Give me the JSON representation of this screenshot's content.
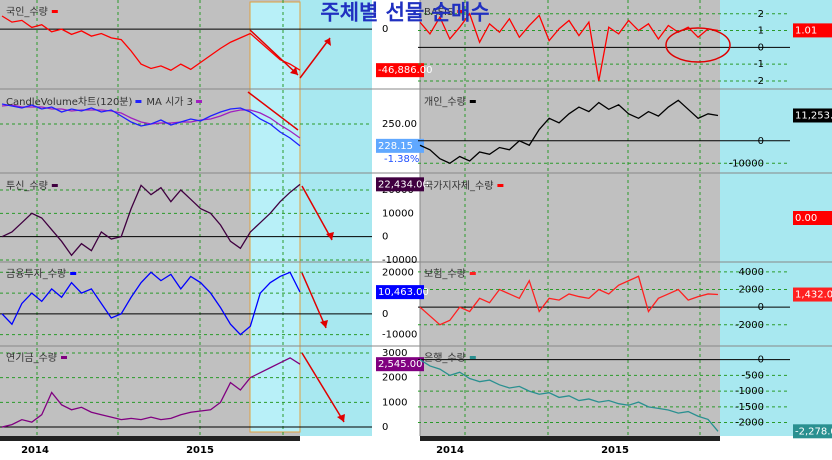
{
  "title": "주체별 선물 순매수",
  "x_axis": {
    "left": [
      "2014",
      "2015"
    ],
    "right": [
      "2014",
      "2015"
    ]
  },
  "chart_data": [
    {
      "type": "line",
      "title": "국인_수량",
      "color": "#ff0000",
      "ylim": [
        -65000,
        31000
      ],
      "yticks": [
        0
      ],
      "value_label": "-46,886.00",
      "values": [
        15000,
        8000,
        10000,
        2000,
        5000,
        -3000,
        0,
        -6000,
        -2000,
        -8000,
        -5000,
        -10000,
        -12000,
        -25000,
        -40000,
        -45000,
        -42000,
        -47000,
        -40000,
        -46000,
        -38000,
        -30000,
        -22000,
        -15000,
        -10000,
        -5000,
        -15000,
        -25000,
        -35000,
        -40000,
        -46886
      ]
    },
    {
      "type": "line",
      "ylim": [
        204,
        282
      ],
      "yticks": [
        {
          "value": 250,
          "label": "250.00"
        }
      ],
      "value_label": "228.15",
      "change_label": "-1.38%",
      "series": [
        {
          "name": "CandleVolume차트(120분)",
          "color": "#2020ff",
          "values": [
            270,
            268,
            266,
            269,
            265,
            267,
            262,
            265,
            263,
            266,
            262,
            264,
            258,
            252,
            248,
            250,
            254,
            249,
            252,
            255,
            253,
            258,
            262,
            265,
            266,
            262,
            255,
            250,
            242,
            236,
            228.15
          ]
        },
        {
          "name": "MA 시가 3",
          "color": "#a020c0",
          "values": [
            268,
            269,
            267,
            267,
            267,
            265,
            265,
            263,
            264,
            264,
            264,
            263,
            261,
            256,
            252,
            250,
            251,
            251,
            252,
            252,
            254,
            255,
            258,
            262,
            264,
            264,
            261,
            256,
            249,
            243,
            236
          ]
        }
      ]
    },
    {
      "type": "line",
      "title": "투신_수량",
      "color": "#400040",
      "ylim": [
        -10000,
        26000
      ],
      "yticks": [
        20000,
        10000,
        0,
        -10000
      ],
      "value_label": "22,434.00",
      "values": [
        0,
        2000,
        6000,
        10000,
        8000,
        3000,
        -2000,
        -8000,
        -3000,
        -6000,
        2000,
        -1000,
        0,
        12000,
        22000,
        18000,
        21000,
        15000,
        20000,
        16000,
        12000,
        10000,
        5000,
        -2000,
        -5000,
        2000,
        6000,
        10000,
        15000,
        19000,
        22434
      ]
    },
    {
      "type": "line",
      "title": "금융투자_수량",
      "color": "#0000ff",
      "ylim": [
        -15000,
        24000
      ],
      "yticks": [
        20000,
        10000,
        0,
        -10000
      ],
      "value_label": "10,463.00",
      "values": [
        0,
        -5000,
        5000,
        10000,
        6000,
        12000,
        8000,
        15000,
        10000,
        12000,
        5000,
        -2000,
        0,
        8000,
        15000,
        20000,
        16000,
        19000,
        12000,
        18000,
        15000,
        10000,
        3000,
        -5000,
        -10000,
        -6000,
        10000,
        15000,
        18000,
        20000,
        10463
      ]
    },
    {
      "type": "line",
      "title": "연기금_수량",
      "color": "#800080",
      "ylim": [
        -200,
        3200
      ],
      "yticks": [
        3000,
        2000,
        1000,
        0
      ],
      "value_label": "2,545.00",
      "values": [
        0,
        100,
        300,
        200,
        500,
        1400,
        900,
        700,
        800,
        600,
        500,
        400,
        300,
        350,
        300,
        400,
        300,
        350,
        500,
        600,
        650,
        700,
        1000,
        1800,
        1500,
        2000,
        2200,
        2400,
        2600,
        2800,
        2545
      ]
    },
    {
      "type": "line",
      "title": "BASIS",
      "color": "#ff0000",
      "ylim": [
        -2.3,
        2.7
      ],
      "yticks": [
        2,
        1,
        0,
        -1,
        -2
      ],
      "value_label": "1.01",
      "values": [
        1.5,
        0.8,
        1.8,
        0.5,
        1.2,
        2.0,
        0.3,
        1.4,
        0.9,
        1.7,
        0.6,
        1.3,
        1.9,
        0.4,
        1.1,
        1.6,
        0.7,
        1.5,
        -2.0,
        1.2,
        0.8,
        1.6,
        1.0,
        1.4,
        0.5,
        1.3,
        0.9,
        1.2,
        0.6,
        1.1,
        1.01
      ]
    },
    {
      "type": "line",
      "title": "개인_수량",
      "color": "#000000",
      "ylim": [
        -13000,
        21700
      ],
      "yticks": [
        0,
        -10000
      ],
      "value_label": "11,253.00",
      "values": [
        -2000,
        -4000,
        -8000,
        -10000,
        -7000,
        -9000,
        -5000,
        -6000,
        -3000,
        -4000,
        0,
        -2000,
        5000,
        10000,
        8000,
        12000,
        15000,
        13000,
        17000,
        14000,
        16000,
        12000,
        10000,
        13000,
        11000,
        15000,
        18000,
        14000,
        10000,
        12000,
        11253
      ]
    },
    {
      "type": "line",
      "title": "국가지자체_수량",
      "color": "#ff0000",
      "value_label": "0.00"
    },
    {
      "type": "line",
      "title": "보험_수량",
      "color": "#ff2020",
      "ylim": [
        -4300,
        4900
      ],
      "yticks": [
        4000,
        2000,
        0,
        -2000
      ],
      "value_label": "1,432.00",
      "values": [
        0,
        -1000,
        -2000,
        -1500,
        0,
        -500,
        1000,
        500,
        2000,
        1500,
        1000,
        3000,
        -500,
        1000,
        800,
        1500,
        1200,
        1000,
        2000,
        1500,
        2500,
        3000,
        3500,
        -500,
        1000,
        1500,
        2000,
        800,
        1200,
        1500,
        1432
      ]
    },
    {
      "type": "line",
      "title": "은행_수량",
      "color": "#2a9090",
      "ylim": [
        -2300,
        370
      ],
      "yticks": [
        0,
        -500,
        -1000,
        -1500,
        -2000
      ],
      "value_label": "-2,278.00",
      "values": [
        0,
        -200,
        -300,
        -500,
        -400,
        -600,
        -700,
        -650,
        -800,
        -900,
        -850,
        -1000,
        -1100,
        -1050,
        -1200,
        -1150,
        -1300,
        -1250,
        -1350,
        -1300,
        -1400,
        -1450,
        -1350,
        -1500,
        -1550,
        -1600,
        -1700,
        -1650,
        -1800,
        -1900,
        -2278
      ]
    }
  ]
}
